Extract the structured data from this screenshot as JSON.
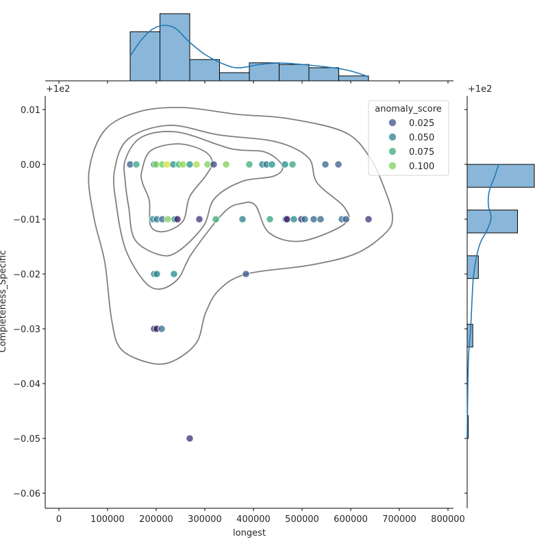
{
  "chart_data": {
    "type": "scatter",
    "subtype": "jointplot",
    "xlabel": "longest",
    "ylabel": "Completeness_Specific",
    "x_ticks": [
      "0",
      "100000",
      "200000",
      "300000",
      "400000",
      "500000",
      "600000",
      "700000",
      "800000"
    ],
    "x_tick_values": [
      0,
      100000,
      200000,
      300000,
      400000,
      500000,
      600000,
      700000,
      800000
    ],
    "y_offset_label": "+1e2",
    "y_ticks": [
      "0.01",
      "0.00",
      "−0.01",
      "−0.02",
      "−0.03",
      "−0.04",
      "−0.05",
      "−0.06"
    ],
    "y_tick_values": [
      0.01,
      0.0,
      -0.01,
      -0.02,
      -0.03,
      -0.04,
      -0.05,
      -0.06
    ],
    "xlim": [
      -30000,
      810000
    ],
    "ylim": [
      -0.0625,
      0.0125
    ],
    "grid": false,
    "legend": {
      "title": "anomaly_score",
      "placement": "top-right",
      "entries": [
        {
          "label": "0.025",
          "value": 0.025
        },
        {
          "label": "0.050",
          "value": 0.05
        },
        {
          "label": "0.075",
          "value": 0.075
        },
        {
          "label": "0.100",
          "value": 0.1
        }
      ]
    },
    "colormap": "viridis",
    "points": [
      {
        "x": 146500,
        "y": 0,
        "score": 0.03
      },
      {
        "x": 159200,
        "y": 0,
        "score": 0.07
      },
      {
        "x": 195800,
        "y": 0,
        "score": 0.055
      },
      {
        "x": 200000,
        "y": 0,
        "score": 0.1
      },
      {
        "x": 212700,
        "y": 0,
        "score": 0.095
      },
      {
        "x": 222500,
        "y": 0,
        "score": 0.12
      },
      {
        "x": 235200,
        "y": 0,
        "score": 0.06
      },
      {
        "x": 246500,
        "y": 0,
        "score": 0.08
      },
      {
        "x": 254900,
        "y": 0,
        "score": 0.105
      },
      {
        "x": 269000,
        "y": 0,
        "score": 0.06
      },
      {
        "x": 283100,
        "y": 0,
        "score": 0.11
      },
      {
        "x": 305600,
        "y": 0,
        "score": 0.1
      },
      {
        "x": 318300,
        "y": 0,
        "score": 0.02
      },
      {
        "x": 343700,
        "y": 0,
        "score": 0.1
      },
      {
        "x": 391500,
        "y": 0,
        "score": 0.075
      },
      {
        "x": 418300,
        "y": 0,
        "score": 0.05
      },
      {
        "x": 426800,
        "y": 0,
        "score": 0.045
      },
      {
        "x": 438000,
        "y": 0,
        "score": 0.06
      },
      {
        "x": 464800,
        "y": 0,
        "score": 0.055
      },
      {
        "x": 480300,
        "y": 0,
        "score": 0.07
      },
      {
        "x": 547900,
        "y": 0,
        "score": 0.035
      },
      {
        "x": 574600,
        "y": 0,
        "score": 0.03
      },
      {
        "x": 193000,
        "y": -0.01,
        "score": 0.055
      },
      {
        "x": 201400,
        "y": -0.01,
        "score": 0.045
      },
      {
        "x": 212700,
        "y": -0.01,
        "score": 0.035
      },
      {
        "x": 223900,
        "y": -0.01,
        "score": 0.1
      },
      {
        "x": 238000,
        "y": -0.01,
        "score": 0.06
      },
      {
        "x": 243700,
        "y": -0.01,
        "score": 0.0
      },
      {
        "x": 288700,
        "y": -0.01,
        "score": 0.012
      },
      {
        "x": 322500,
        "y": -0.01,
        "score": 0.075
      },
      {
        "x": 377500,
        "y": -0.01,
        "score": 0.05
      },
      {
        "x": 433800,
        "y": -0.01,
        "score": 0.07
      },
      {
        "x": 466200,
        "y": -0.01,
        "score": 0.04
      },
      {
        "x": 469000,
        "y": -0.01,
        "score": 0.0
      },
      {
        "x": 483100,
        "y": -0.01,
        "score": 0.055
      },
      {
        "x": 498600,
        "y": -0.01,
        "score": 0.012
      },
      {
        "x": 505600,
        "y": -0.01,
        "score": 0.042
      },
      {
        "x": 523900,
        "y": -0.01,
        "score": 0.035
      },
      {
        "x": 538000,
        "y": -0.01,
        "score": 0.035
      },
      {
        "x": 581700,
        "y": -0.01,
        "score": 0.042
      },
      {
        "x": 590100,
        "y": -0.01,
        "score": 0.03
      },
      {
        "x": 636600,
        "y": -0.01,
        "score": 0.012
      },
      {
        "x": 195800,
        "y": -0.02,
        "score": 0.05
      },
      {
        "x": 201400,
        "y": -0.02,
        "score": 0.052
      },
      {
        "x": 236600,
        "y": -0.02,
        "score": 0.055
      },
      {
        "x": 384500,
        "y": -0.02,
        "score": 0.028
      },
      {
        "x": 195800,
        "y": -0.03,
        "score": 0.012
      },
      {
        "x": 201400,
        "y": -0.03,
        "score": 0.0
      },
      {
        "x": 211300,
        "y": -0.03,
        "score": 0.04
      },
      {
        "x": 269000,
        "y": -0.05,
        "score": 0.01
      }
    ],
    "marginal_x_histogram": {
      "bin_start": 146500,
      "bin_width": 61260,
      "counts": [
        30,
        41,
        13,
        5,
        11,
        10,
        8,
        3
      ]
    },
    "marginal_y_histogram": {
      "bins": [
        {
          "from": -0.00417,
          "to": 0.0,
          "count": 60
        },
        {
          "from": -0.0125,
          "to": -0.00833,
          "count": 45
        },
        {
          "from": -0.02083,
          "to": -0.01667,
          "count": 10
        },
        {
          "from": -0.03333,
          "to": -0.02917,
          "count": 5
        },
        {
          "from": -0.05,
          "to": -0.04583,
          "count": 1
        }
      ]
    },
    "colors": {
      "histogram_fill": "#8ab7d9",
      "kde_line": "#1f77b4",
      "contour": "#7f7f7f"
    }
  }
}
